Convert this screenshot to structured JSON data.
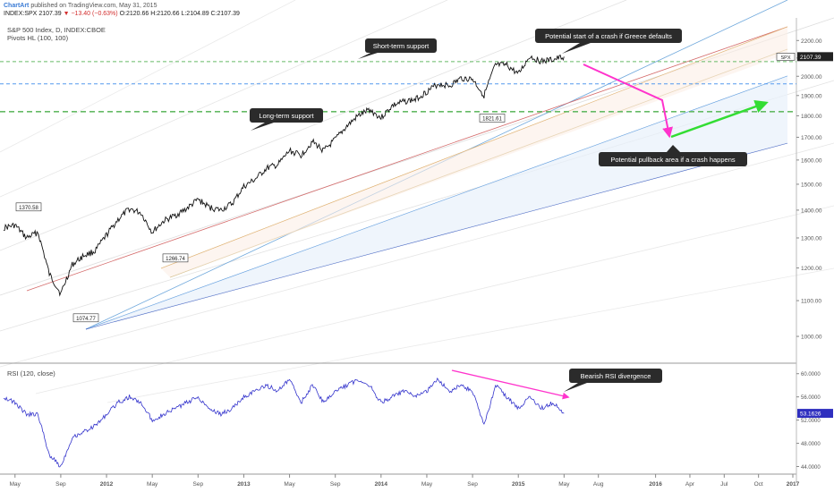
{
  "header": {
    "brand": "ChartArt",
    "published": "published on TradingView.com, May 31, 2015",
    "symbol": "INDEX:SPX",
    "last": "2107.39",
    "change_arrow": "▼",
    "change": "−13.40 (−0.63%)",
    "ohlc": "O:2120.66 H:2120.66 L:2104.89 C:2107.39"
  },
  "chart_title": "S&P 500 Index, D, INDEX:CBOE",
  "indicator_label": "Pivots HL (100, 100)",
  "rsi_title": "RSI (120, close)",
  "colors": {
    "price": "#111111",
    "rsi": "#3333cc",
    "pink": "#ff33cc",
    "green": "#33dd33",
    "support": "#66bb66",
    "blue_dash": "#5599ee",
    "callout_bg": "#2b2b2b"
  },
  "chart_data": [
    {
      "type": "line",
      "title": "S&P 500 Index, D, INDEX:CBOE",
      "x_ticks": [
        "May",
        "Sep",
        "2012",
        "May",
        "Sep",
        "2013",
        "May",
        "Sep",
        "2014",
        "May",
        "Sep",
        "2015",
        "May",
        "Aug",
        "2016",
        "Apr",
        "Jul",
        "Oct",
        "2017"
      ],
      "y_ticks": [
        1000,
        1100,
        1200,
        1300,
        1400,
        1500,
        1600,
        1700,
        1800,
        1900,
        2000,
        2100,
        2200
      ],
      "ylim": [
        940,
        2260
      ],
      "last_price_label": "SPX",
      "last_price": 2107.39,
      "series": [
        {
          "name": "SPX",
          "x": [
            "2011-04",
            "2011-05",
            "2011-06",
            "2011-07",
            "2011-08",
            "2011-09",
            "2011-10",
            "2011-11",
            "2011-12",
            "2012-01",
            "2012-02",
            "2012-03",
            "2012-04",
            "2012-05",
            "2012-06",
            "2012-07",
            "2012-08",
            "2012-09",
            "2012-10",
            "2012-11",
            "2012-12",
            "2013-01",
            "2013-02",
            "2013-03",
            "2013-04",
            "2013-05",
            "2013-06",
            "2013-07",
            "2013-08",
            "2013-09",
            "2013-10",
            "2013-11",
            "2013-12",
            "2014-01",
            "2014-02",
            "2014-03",
            "2014-04",
            "2014-05",
            "2014-06",
            "2014-07",
            "2014-08",
            "2014-09",
            "2014-10",
            "2014-11",
            "2014-12",
            "2015-01",
            "2015-02",
            "2015-03",
            "2015-04",
            "2015-05"
          ],
          "values": [
            1335,
            1345,
            1300,
            1320,
            1180,
            1120,
            1210,
            1240,
            1255,
            1310,
            1365,
            1405,
            1390,
            1320,
            1360,
            1380,
            1405,
            1440,
            1410,
            1400,
            1425,
            1490,
            1520,
            1565,
            1580,
            1640,
            1620,
            1680,
            1640,
            1690,
            1750,
            1800,
            1830,
            1790,
            1850,
            1870,
            1880,
            1920,
            1960,
            1950,
            1990,
            1985,
            1900,
            2060,
            2060,
            2010,
            2110,
            2080,
            2090,
            2107
          ]
        }
      ],
      "marked_values": [
        {
          "label": "1370.58"
        },
        {
          "label": "1074.77"
        },
        {
          "label": "1266.74"
        },
        {
          "label": "1821.61"
        }
      ],
      "reference_levels": [
        {
          "y": 2080,
          "style": "green-dash"
        },
        {
          "y": 1960,
          "style": "blue-dash"
        },
        {
          "y": 1820,
          "style": "green-dash-bold"
        }
      ],
      "annotations": [
        "Short-term support",
        "Long-term support",
        "Potential start of a crash if Greece defaults",
        "Potential pullback area if a crash happens"
      ]
    },
    {
      "type": "line",
      "title": "RSI (120, close)",
      "y_ticks": [
        44,
        48,
        52,
        56,
        60
      ],
      "y_tick_labels": [
        "44.0000",
        "48.0000",
        "52.0000",
        "56.0000",
        "60.0000"
      ],
      "ylim": [
        43,
        61.5
      ],
      "last_value_label": "53.1626",
      "last_value": 53.1626,
      "series": [
        {
          "name": "RSI",
          "x": [
            "2011-04",
            "2011-05",
            "2011-06",
            "2011-07",
            "2011-08",
            "2011-09",
            "2011-10",
            "2011-11",
            "2011-12",
            "2012-01",
            "2012-02",
            "2012-03",
            "2012-04",
            "2012-05",
            "2012-06",
            "2012-07",
            "2012-08",
            "2012-09",
            "2012-10",
            "2012-11",
            "2012-12",
            "2013-01",
            "2013-02",
            "2013-03",
            "2013-04",
            "2013-05",
            "2013-06",
            "2013-07",
            "2013-08",
            "2013-09",
            "2013-10",
            "2013-11",
            "2013-12",
            "2014-01",
            "2014-02",
            "2014-03",
            "2014-04",
            "2014-05",
            "2014-06",
            "2014-07",
            "2014-08",
            "2014-09",
            "2014-10",
            "2014-11",
            "2014-12",
            "2015-01",
            "2015-02",
            "2015-03",
            "2015-04",
            "2015-05"
          ],
          "values": [
            56,
            55,
            53,
            53,
            46,
            44,
            49,
            50,
            51,
            53,
            55,
            56,
            55,
            52,
            53,
            54,
            55,
            56,
            54,
            53,
            54,
            56,
            57,
            58,
            57,
            59,
            55,
            58,
            55,
            57,
            58,
            59,
            58,
            55,
            56,
            57,
            56,
            57,
            59,
            57,
            58,
            57,
            51,
            58,
            56,
            54,
            56,
            54,
            55,
            53.16
          ]
        }
      ],
      "annotations": [
        "Bearish RSI divergence"
      ]
    }
  ]
}
